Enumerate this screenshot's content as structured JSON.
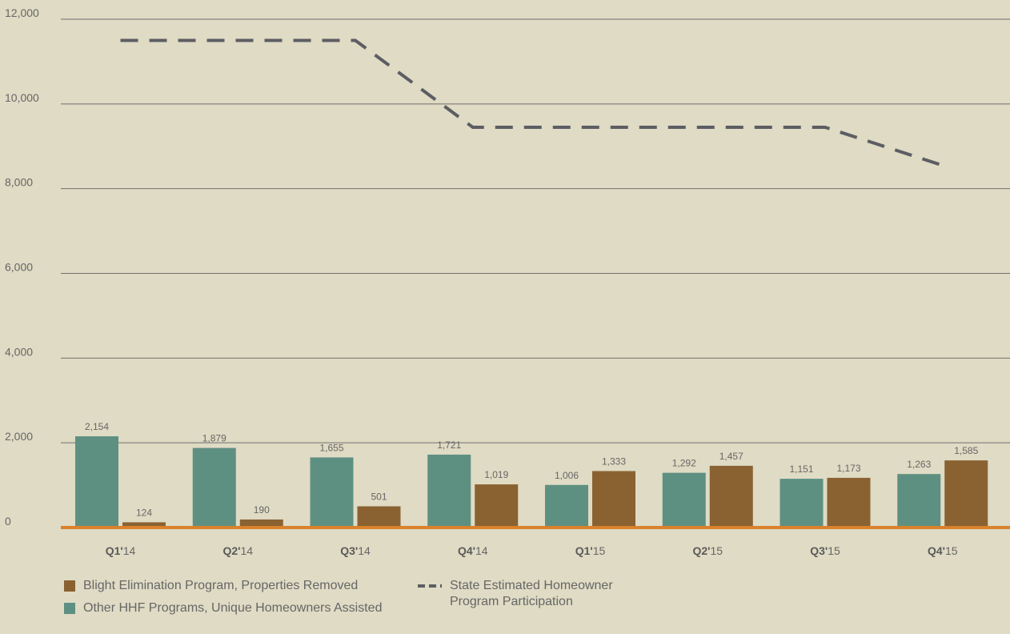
{
  "chart_data": {
    "type": "bar",
    "categories": [
      {
        "q": "Q1'",
        "y": "14"
      },
      {
        "q": "Q2'",
        "y": "14"
      },
      {
        "q": "Q3'",
        "y": "14"
      },
      {
        "q": "Q4'",
        "y": "14"
      },
      {
        "q": "Q1'",
        "y": "15"
      },
      {
        "q": "Q2'",
        "y": "15"
      },
      {
        "q": "Q3'",
        "y": "15"
      },
      {
        "q": "Q4'",
        "y": "15"
      }
    ],
    "ylim": [
      0,
      12000
    ],
    "yticks": [
      0,
      2000,
      4000,
      6000,
      8000,
      10000,
      12000
    ],
    "ytick_labels": [
      "0",
      "2,000",
      "4,000",
      "6,000",
      "8,000",
      "10,000",
      "12,000"
    ],
    "grid": true,
    "legend_placement": "bottom-left",
    "series": [
      {
        "name": "Other HHF Programs, Unique Homeowners Assisted",
        "kind": "bar",
        "color": "#5e9082",
        "values": [
          2154,
          1879,
          1655,
          1721,
          1006,
          1292,
          1151,
          1263
        ],
        "labels": [
          "2,154",
          "1,879",
          "1,655",
          "1,721",
          "1,006",
          "1,292",
          "1,151",
          "1,263"
        ]
      },
      {
        "name": "Blight Elimination Program, Properties Removed",
        "kind": "bar",
        "color": "#8a6232",
        "values": [
          124,
          190,
          501,
          1019,
          1333,
          1457,
          1173,
          1585
        ],
        "labels": [
          "124",
          "190",
          "501",
          "1,019",
          "1,333",
          "1,457",
          "1,173",
          "1,585"
        ]
      },
      {
        "name": "State Estimated Homeowner Program Participation",
        "kind": "line-dashed",
        "color": "#5d5e63",
        "values": [
          11500,
          11500,
          11500,
          9450,
          9450,
          9450,
          9450,
          8550
        ]
      }
    ],
    "baseline_color": "#d9822b"
  },
  "legend": {
    "blight": "Blight Elimination Program, Properties Removed",
    "other": "Other HHF Programs, Unique Homeowners Assisted",
    "state_line1": "State Estimated Homeowner",
    "state_line2": "Program Participation"
  }
}
